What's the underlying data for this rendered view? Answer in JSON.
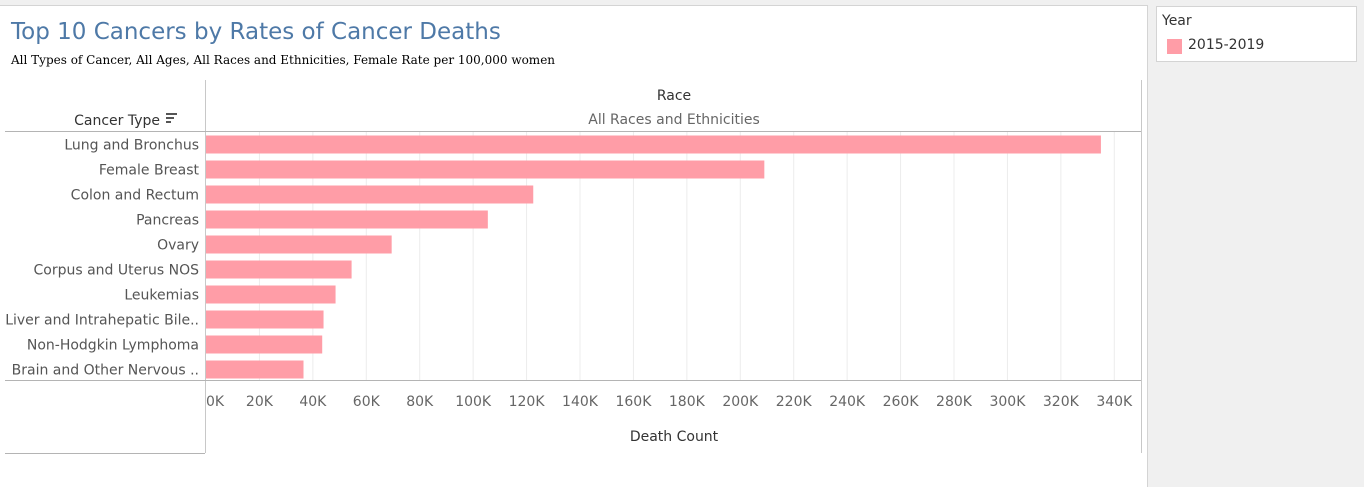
{
  "chart_data": {
    "type": "bar",
    "orientation": "horizontal",
    "title": "Top 10 Cancers by Rates of Cancer Deaths",
    "subtitle": "All Types of Cancer, All Ages, All Races and Ethnicities, Female Rate per 100,000 women",
    "row_header": "Cancer Type",
    "column_header": "Race",
    "column_value": "All Races and Ethnicities",
    "xlabel": "Death Count",
    "categories": [
      "Lung and Bronchus",
      "Female Breast",
      "Colon and Rectum",
      "Pancreas",
      "Ovary",
      "Corpus and Uterus NOS",
      "Leukemias",
      "Liver and Intrahepatic Bile..",
      "Non-Hodgkin Lymphoma",
      "Brain and Other Nervous .."
    ],
    "series": [
      {
        "name": "2015-2019",
        "color": "#ff9da7",
        "values": [
          335000,
          209000,
          122500,
          105500,
          69500,
          54500,
          48500,
          44000,
          43500,
          36500
        ]
      }
    ],
    "xlim": [
      0,
      350000
    ],
    "xticks": [
      0,
      20000,
      40000,
      60000,
      80000,
      100000,
      120000,
      140000,
      160000,
      180000,
      200000,
      220000,
      240000,
      260000,
      280000,
      300000,
      320000,
      340000
    ],
    "xtick_labels": [
      "0K",
      "20K",
      "40K",
      "60K",
      "80K",
      "100K",
      "120K",
      "140K",
      "160K",
      "180K",
      "200K",
      "220K",
      "240K",
      "260K",
      "280K",
      "300K",
      "320K",
      "340K"
    ],
    "grid": true,
    "legend_position": "right"
  },
  "legend": {
    "title": "Year",
    "items": [
      {
        "label": "2015-2019",
        "color": "#ff9da7"
      }
    ]
  }
}
